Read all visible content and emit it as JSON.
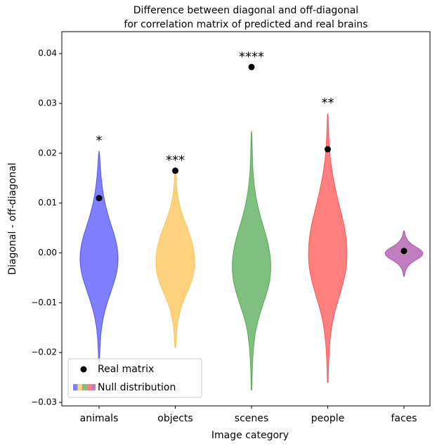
{
  "chart_data": {
    "type": "violin",
    "title": [
      "Difference between diagonal and off-diagonal",
      "for correlation matrix of predicted and real brains"
    ],
    "xlabel": "Image category",
    "ylabel": "Diagonal - off-diagonal",
    "categories": [
      "animals",
      "objects",
      "scenes",
      "people",
      "faces"
    ],
    "violins": {
      "name": "Null distribution",
      "items": [
        {
          "color": "#0000ff",
          "min": -0.022,
          "max": 0.0205,
          "density": [
            0.02,
            0.05,
            0.12,
            0.3,
            0.6,
            0.9,
            1.0,
            0.85,
            0.55,
            0.3,
            0.15,
            0.07,
            0.02
          ]
        },
        {
          "color": "#ffa500",
          "min": -0.019,
          "max": 0.0165,
          "density": [
            0.02,
            0.06,
            0.15,
            0.35,
            0.7,
            0.95,
            1.0,
            0.9,
            0.65,
            0.35,
            0.15,
            0.06,
            0.03
          ]
        },
        {
          "color": "#008000",
          "min": -0.0275,
          "max": 0.0245,
          "density": [
            0.02,
            0.04,
            0.1,
            0.25,
            0.6,
            0.95,
            1.0,
            0.8,
            0.45,
            0.2,
            0.08,
            0.04,
            0.02
          ]
        },
        {
          "color": "#ff0000",
          "min": -0.026,
          "max": 0.028,
          "density": [
            0.02,
            0.05,
            0.12,
            0.3,
            0.65,
            0.95,
            1.0,
            0.85,
            0.55,
            0.3,
            0.12,
            0.05,
            0.02
          ]
        },
        {
          "color": "#800080",
          "min": -0.0047,
          "max": 0.0045,
          "density": [
            0.02,
            0.05,
            0.12,
            0.25,
            0.5,
            0.85,
            1.0,
            0.85,
            0.5,
            0.25,
            0.12,
            0.05,
            0.02
          ]
        }
      ]
    },
    "points": {
      "name": "Real matrix",
      "color": "#000000",
      "values": [
        0.011,
        0.0165,
        0.0373,
        0.0208,
        0.0004
      ]
    },
    "annotations": [
      "*",
      "***",
      "****",
      "**",
      null
    ],
    "ylim": [
      -0.0307,
      0.0444
    ],
    "yticks": [
      {
        "value": -0.03,
        "label": "−0.03"
      },
      {
        "value": -0.02,
        "label": "−0.02"
      },
      {
        "value": -0.01,
        "label": "−0.01"
      },
      {
        "value": 0,
        "label": "0.00"
      },
      {
        "value": 0.01,
        "label": "0.01"
      },
      {
        "value": 0.02,
        "label": "0.02"
      },
      {
        "value": 0.03,
        "label": "0.03"
      },
      {
        "value": 0.04,
        "label": "0.04"
      }
    ],
    "legend": "lower left"
  }
}
